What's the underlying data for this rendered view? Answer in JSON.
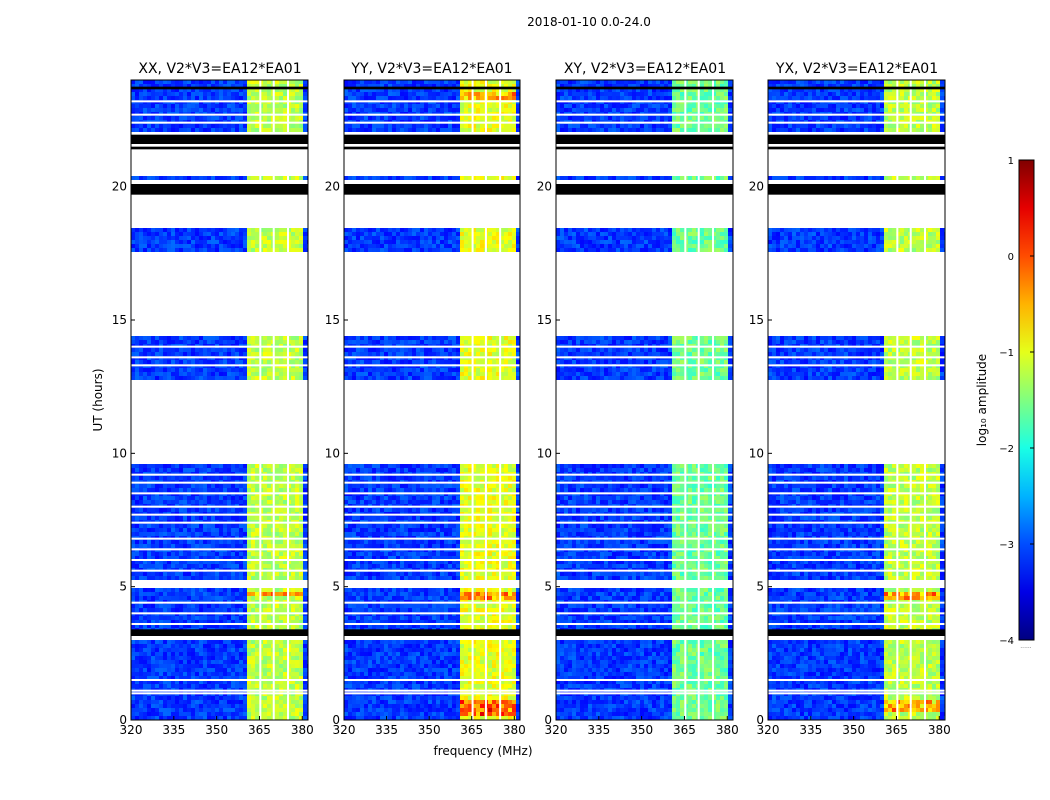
{
  "figure": {
    "suptitle": "2018-01-10 0.0-24.0",
    "xlabel": "frequency (MHz)",
    "ylabel": "UT (hours)",
    "colorbar_label": "log₁₀ amplitude",
    "colorbar_extra": "......"
  },
  "chart_data": {
    "type": "heatmap",
    "colormap": "jet",
    "xlim": [
      320,
      382
    ],
    "ylim": [
      0,
      24
    ],
    "x_ticks": [
      320,
      335,
      350,
      365,
      380
    ],
    "y_ticks": [
      0,
      5,
      10,
      15,
      20
    ],
    "colorbar": {
      "range": [
        -4,
        1
      ],
      "ticks": [
        1,
        0,
        -1,
        -2,
        -3,
        -4
      ],
      "tick_labels": [
        "1",
        "0",
        "−1",
        "−2",
        "−3",
        "−4"
      ]
    },
    "panels": [
      {
        "title": "XX, V2*V3=EA12*EA01",
        "bright_level": -1.2,
        "hot": [
          [
            4.6,
            4.8,
            0.35
          ]
        ]
      },
      {
        "title": "YY, V2*V3=EA12*EA01",
        "bright_level": -1.0,
        "hot": [
          [
            0.1,
            0.7,
            0.5
          ],
          [
            4.5,
            4.8,
            0.3
          ],
          [
            23.2,
            23.6,
            0.1
          ]
        ]
      },
      {
        "title": "XY, V2*V3=EA12*EA01",
        "bright_level": -1.6,
        "hot": []
      },
      {
        "title": "YX, V2*V3=EA12*EA01",
        "bright_level": -1.2,
        "hot": [
          [
            0.3,
            0.7,
            0.3
          ],
          [
            4.5,
            4.8,
            0.35
          ]
        ]
      }
    ],
    "background_level": -3.1,
    "bright_band_MHz": [
      361,
      380
    ],
    "bright_band_gaps_MHz": [
      365.3,
      370.0,
      375.0
    ],
    "data_intervals_UT": [
      [
        0.0,
        2.95
      ],
      [
        3.1,
        5.0
      ],
      [
        5.2,
        9.6
      ],
      [
        12.75,
        14.35
      ],
      [
        17.6,
        18.4
      ],
      [
        20.2,
        20.45
      ],
      [
        22.0,
        24.0
      ]
    ],
    "flagged_black_UT": [
      [
        19.7,
        20.1
      ],
      [
        21.6,
        21.95
      ],
      [
        21.4,
        21.5
      ],
      [
        3.15,
        3.4
      ],
      [
        23.65,
        23.75
      ]
    ],
    "white_gap_lines_UT": [
      1.0,
      1.1,
      1.5,
      3.6,
      4.0,
      4.4,
      5.6,
      6.0,
      6.4,
      6.8,
      7.4,
      7.7,
      8.0,
      8.5,
      8.9,
      9.2,
      13.3,
      13.6,
      14.0,
      22.4,
      22.7,
      23.2
    ]
  }
}
